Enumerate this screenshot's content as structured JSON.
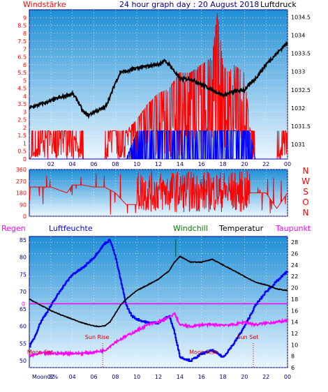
{
  "header": {
    "left_label": "Windstärke",
    "title": "24 hour graph day : 20 August 2018",
    "right_label": "Luftdruck"
  },
  "colors": {
    "panel_top": "#1f8fd6",
    "panel_bottom": "#eaf6ff",
    "pressure": "#000000",
    "wind_gust": "#ff0000",
    "wind_avg": "#0000ff",
    "direction": "#ff0000",
    "humidity": "#0000ff",
    "temperature": "#000000",
    "dewpoint": "#ff00ff",
    "windchill": "#008000",
    "zero_line": "#ff00ff",
    "astro": "#cc0000",
    "axis_text_red": "#ff0000",
    "axis_text_blue": "#000080"
  },
  "chart_data": [
    {
      "type": "line",
      "name": "wind-pressure",
      "x_ticks": [
        "02",
        "04",
        "06",
        "08",
        "10",
        "12",
        "14",
        "16",
        "18",
        "20",
        "22",
        "00"
      ],
      "x_range_hours": [
        0,
        24
      ],
      "y_left": {
        "label": "Windstärke",
        "range": [
          0,
          9.5
        ],
        "ticks": [
          "0",
          "0.5",
          "1",
          "1.5",
          "2",
          "2.5",
          "3",
          "3.5",
          "4",
          "4.5",
          "5",
          "5.5",
          "6",
          "6.5",
          "7",
          "7.5",
          "8",
          "8.5",
          "9"
        ]
      },
      "y_right": {
        "label": "Luftdruck",
        "range": [
          1030.6,
          1034.7
        ],
        "ticks": [
          "1031",
          "1031.5",
          "1032",
          "1032.5",
          "1033",
          "1033.5",
          "1034",
          "1034.5"
        ]
      },
      "series": [
        {
          "name": "Luftdruck",
          "axis": "right",
          "x": [
            0,
            1,
            2,
            3,
            4,
            4.5,
            5,
            5.5,
            6,
            6.5,
            7,
            7.5,
            8,
            8.5,
            9,
            10,
            11,
            12,
            12.5,
            13,
            13.5,
            14,
            15,
            16,
            17,
            18,
            19,
            20,
            21,
            22,
            23,
            24
          ],
          "y": [
            1032.0,
            1032.1,
            1032.2,
            1032.3,
            1032.4,
            1032.2,
            1031.9,
            1031.8,
            1031.9,
            1031.95,
            1032.0,
            1032.3,
            1032.7,
            1033.0,
            1033.0,
            1033.1,
            1033.15,
            1033.2,
            1033.3,
            1033.2,
            1033.0,
            1032.8,
            1032.8,
            1032.65,
            1032.5,
            1032.35,
            1032.45,
            1032.5,
            1032.8,
            1033.2,
            1033.5,
            1033.8
          ]
        },
        {
          "name": "Windböen",
          "axis": "left",
          "shape": "random-fill",
          "x": [
            0,
            2,
            2.5,
            3,
            4,
            5,
            6,
            7,
            7.5,
            8,
            8.5,
            9,
            10,
            11,
            12,
            13,
            14,
            15,
            16,
            17,
            17.5,
            18,
            18.5,
            19,
            20,
            20.5,
            21,
            22,
            23,
            24
          ],
          "y": [
            0,
            1.8,
            0,
            1.8,
            1.8,
            0,
            0,
            0,
            1.8,
            1.8,
            0,
            1.8,
            2.5,
            3.5,
            4.2,
            4.5,
            5.5,
            5.5,
            6.0,
            6.5,
            9.4,
            6.0,
            5.5,
            6.0,
            5.5,
            2.0,
            0,
            0,
            0,
            1.8
          ]
        },
        {
          "name": "Windmittel",
          "axis": "left",
          "shape": "random-fill",
          "x": [
            0,
            9,
            10,
            11,
            12,
            13,
            14,
            15,
            16,
            17,
            18,
            19,
            20,
            20.5,
            21,
            24
          ],
          "y": [
            0,
            0,
            1.8,
            1.8,
            1.8,
            1.8,
            1.8,
            1.8,
            1.8,
            1.8,
            1.8,
            1.8,
            1.8,
            1.8,
            0,
            0
          ]
        }
      ]
    },
    {
      "type": "scatter",
      "name": "wind-direction",
      "x_range_hours": [
        0,
        24
      ],
      "y_left": {
        "range": [
          0,
          360
        ],
        "ticks": [
          "0",
          "90",
          "180",
          "270",
          "360"
        ]
      },
      "y_right_labels": [
        "N",
        "W",
        "S",
        "O",
        "N"
      ],
      "series": [
        {
          "name": "Windrichtung",
          "shape": "steps-then-spread",
          "x": [
            0,
            2,
            3.5,
            4,
            5,
            6,
            7,
            8,
            9,
            10,
            11,
            12,
            14,
            16,
            18,
            20,
            21,
            22,
            23,
            24
          ],
          "y": [
            225,
            225,
            180,
            240,
            240,
            225,
            225,
            180,
            90,
            90,
            180,
            180,
            180,
            180,
            180,
            180,
            180,
            180,
            60,
            180
          ]
        }
      ]
    },
    {
      "type": "line",
      "name": "temperature-humidity",
      "x_ticks": [
        "02",
        "04",
        "06",
        "08",
        "10",
        "12",
        "14",
        "16",
        "18",
        "20",
        "22",
        "00"
      ],
      "x_range_hours": [
        0,
        24
      ],
      "legend": [
        "Regen",
        "Luftfeuchte",
        "Windchill",
        "Temperatur",
        "Taupunkt"
      ],
      "y_left": {
        "label": "Luftfeuchte",
        "range": [
          48,
          86
        ],
        "ticks": [
          "50",
          "55",
          "60",
          "65",
          "70",
          "75",
          "80",
          "85"
        ]
      },
      "y_right": {
        "label": "Temperatur",
        "range": [
          6,
          29
        ],
        "ticks": [
          "6",
          "8",
          "10",
          "12",
          "14",
          "16",
          "18",
          "20",
          "22",
          "24",
          "26",
          "28"
        ]
      },
      "zero_marker": "0",
      "series": [
        {
          "name": "Luftfeuchte",
          "axis": "left",
          "x": [
            0,
            0.5,
            1,
            2,
            3,
            4,
            5,
            6,
            7,
            7.5,
            8,
            8.5,
            9,
            9.5,
            10,
            11,
            12,
            13,
            13.5,
            14,
            15,
            16,
            17,
            18,
            19,
            20,
            21,
            22,
            23,
            24
          ],
          "y": [
            54,
            57,
            61,
            66,
            71,
            75,
            77,
            80,
            84,
            85,
            80,
            73,
            66,
            63,
            62,
            61,
            61,
            63,
            58,
            51,
            50,
            52,
            53,
            51,
            55,
            60,
            66,
            70,
            73,
            76
          ]
        },
        {
          "name": "Temperatur",
          "axis": "right",
          "x": [
            0,
            1,
            2,
            3,
            4,
            5,
            6,
            6.5,
            7,
            7.5,
            8,
            8.5,
            9,
            10,
            11,
            12,
            13,
            13.5,
            14,
            15,
            16,
            17,
            18,
            19,
            20,
            21,
            22,
            23,
            24
          ],
          "y": [
            18,
            17,
            16,
            15.2,
            14.5,
            13.8,
            13.3,
            13.2,
            13.3,
            14,
            15.5,
            17,
            18,
            19.5,
            20.5,
            21.5,
            23,
            24.5,
            25.5,
            24.5,
            24.5,
            25,
            24,
            23,
            22,
            21,
            20.5,
            19.8,
            19.5
          ]
        },
        {
          "name": "Taupunkt",
          "axis": "right",
          "x": [
            0,
            1,
            2,
            3,
            4,
            5,
            6,
            7,
            8,
            9,
            10,
            11,
            12,
            13,
            13.5,
            14,
            15,
            16,
            17,
            18,
            19,
            20,
            21,
            22,
            23,
            24
          ],
          "y": [
            8,
            8.5,
            8.5,
            8.5,
            8.5,
            8.5,
            8.7,
            9,
            10.5,
            11.5,
            12.5,
            13.5,
            14,
            14.8,
            15.5,
            13.5,
            13.2,
            13.5,
            13.5,
            13.5,
            13.5,
            14,
            13.5,
            13.8,
            14,
            14.2
          ]
        },
        {
          "name": "Windchill",
          "axis": "right",
          "x": [
            13.6,
            13.6
          ],
          "y": [
            25.5,
            28.5
          ]
        }
      ],
      "annotations": [
        {
          "text": "Moon Set",
          "x": 1.0,
          "y": 8.4
        },
        {
          "text": "Sun Rise",
          "x": 6.3,
          "y": 11.0
        },
        {
          "text": "Moon Rise",
          "x": 16.2,
          "y": 8.4
        },
        {
          "text": "Sun Set",
          "x": 20.3,
          "y": 11.0
        }
      ],
      "bottom_label": "Moon 8%"
    }
  ]
}
